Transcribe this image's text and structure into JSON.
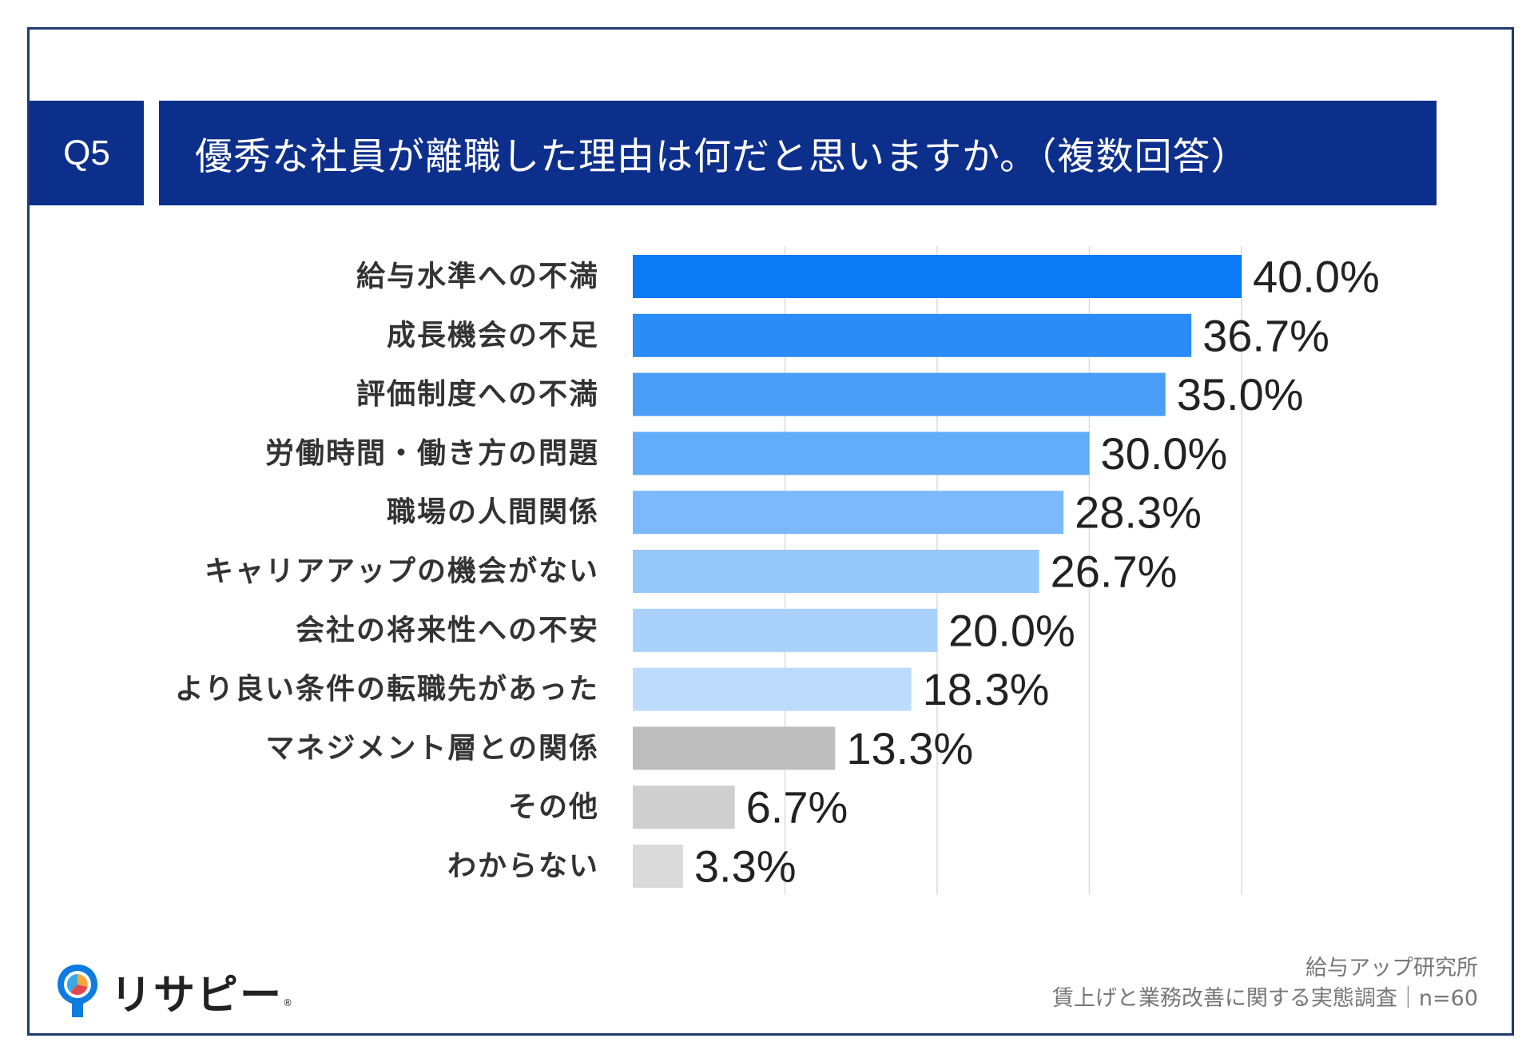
{
  "question": {
    "badge": "Q5",
    "title": "優秀な社員が離職した理由は何だと思いますか。（複数回答）"
  },
  "chart_data": {
    "type": "bar",
    "orientation": "horizontal",
    "title": "優秀な社員が離職した理由は何だと思いますか。（複数回答）",
    "categories": [
      "給与水準への不満",
      "成長機会の不足",
      "評価制度への不満",
      "労働時間・働き方の問題",
      "職場の人間関係",
      "キャリアアップの機会がない",
      "会社の将来性への不安",
      "より良い条件の転職先があった",
      "マネジメント層との関係",
      "その他",
      "わからない"
    ],
    "values": [
      40.0,
      36.7,
      35.0,
      30.0,
      28.3,
      26.7,
      20.0,
      18.3,
      13.3,
      6.7,
      3.3
    ],
    "value_labels": [
      "40.0%",
      "36.7%",
      "35.0%",
      "30.0%",
      "28.3%",
      "26.7%",
      "20.0%",
      "18.3%",
      "13.3%",
      "6.7%",
      "3.3%"
    ],
    "bar_colors": [
      "#0a7af5",
      "#2a8df7",
      "#4a9ef8",
      "#63acf9",
      "#7cb9fa",
      "#96c7fb",
      "#a9d1fc",
      "#bddcfd",
      "#bebebe",
      "#cfcfcf",
      "#dadada"
    ],
    "xlim": [
      0,
      40
    ],
    "gridlines": [
      10,
      20,
      30,
      40
    ],
    "xlabel": "",
    "ylabel": "",
    "legend": "none"
  },
  "brand": {
    "logo_text": "リサピー",
    "logo_icon": "pin-pie-icon",
    "registered_mark": "®"
  },
  "source": {
    "line1": "給与アップ研究所",
    "line2": "賃上げと業務改善に関する実態調査｜n=60"
  }
}
